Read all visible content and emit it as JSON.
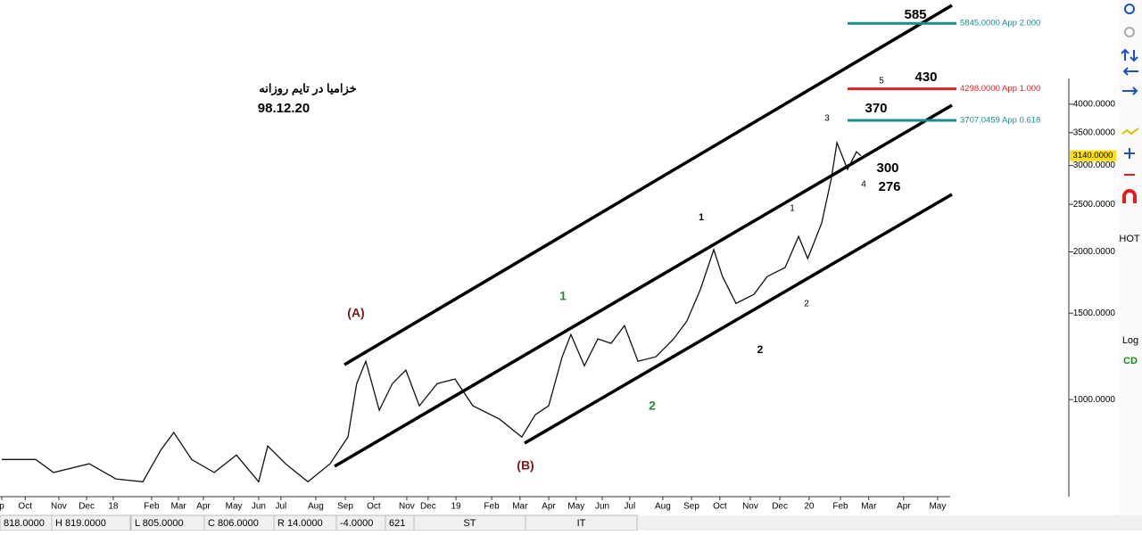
{
  "chart_data": {
    "type": "line",
    "log_scale": true,
    "color": "#111111",
    "x": [
      0,
      1.16,
      1.77,
      2.99,
      3.9,
      4.82,
      5.43,
      5.88,
      6.49,
      7.26,
      8.02,
      8.78,
      9.09,
      9.7,
      10.46,
      11.22,
      11.83,
      12.13,
      12.44,
      12.9,
      13.35,
      13.81,
      14.27,
      14.88,
      15.49,
      16.1,
      17.01,
      17.77,
      18.23,
      18.69,
      19.15,
      19.45,
      19.91,
      20.37,
      20.82,
      21.28,
      21.74,
      22.35,
      22.96,
      23.41,
      23.87,
      24.33,
      24.63,
      25.09,
      25.7,
      26.16,
      26.77,
      27.23,
      27.54,
      28.02,
      28.35,
      28.54,
      28.9,
      29.21,
      29.36
    ],
    "values": [
      755,
      755,
      710,
      740,
      689,
      680,
      788,
      857,
      755,
      710,
      771,
      680,
      804,
      740,
      680,
      740,
      839,
      1078,
      1197,
      951,
      1078,
      1148,
      971,
      1078,
      1101,
      971,
      912,
      839,
      931,
      971,
      1222,
      1357,
      1172,
      1329,
      1302,
      1415,
      1197,
      1222,
      1329,
      1445,
      1674,
      2021,
      1782,
      1571,
      1638,
      1782,
      1859,
      2151,
      1938,
      2290,
      2823,
      3339,
      2947,
      3200,
      3140
    ],
    "xlim": [
      -0.06,
      32.41
    ],
    "ylim": [
      634,
      6523
    ],
    "xticks": [
      {
        "value": 0,
        "label": "p"
      },
      {
        "value": 0.8,
        "label": "Oct"
      },
      {
        "value": 1.95,
        "label": "Nov"
      },
      {
        "value": 2.9,
        "label": "Dec"
      },
      {
        "value": 3.81,
        "label": "18"
      },
      {
        "value": 5.12,
        "label": "Feb"
      },
      {
        "value": 6.04,
        "label": "Mar"
      },
      {
        "value": 6.89,
        "label": "Apr"
      },
      {
        "value": 7.93,
        "label": "May"
      },
      {
        "value": 8.78,
        "label": "Jun"
      },
      {
        "value": 9.54,
        "label": "Jul"
      },
      {
        "value": 10.73,
        "label": "Aug"
      },
      {
        "value": 11.74,
        "label": "Sep"
      },
      {
        "value": 12.71,
        "label": "Oct"
      },
      {
        "value": 13.84,
        "label": "Nov"
      },
      {
        "value": 14.57,
        "label": "Dec"
      },
      {
        "value": 15.52,
        "label": "19"
      },
      {
        "value": 16.74,
        "label": "Feb"
      },
      {
        "value": 17.71,
        "label": "Mar"
      },
      {
        "value": 18.69,
        "label": "Apr"
      },
      {
        "value": 19.63,
        "label": "May"
      },
      {
        "value": 20.52,
        "label": "Jun"
      },
      {
        "value": 21.46,
        "label": "Jul"
      },
      {
        "value": 22.59,
        "label": "Aug"
      },
      {
        "value": 23.57,
        "label": "Sep"
      },
      {
        "value": 24.54,
        "label": "Oct"
      },
      {
        "value": 25.58,
        "label": "Nov"
      },
      {
        "value": 26.59,
        "label": "Dec"
      },
      {
        "value": 27.59,
        "label": "20"
      },
      {
        "value": 28.66,
        "label": "Feb"
      },
      {
        "value": 29.63,
        "label": "Mar"
      },
      {
        "value": 30.82,
        "label": "Apr"
      },
      {
        "value": 31.98,
        "label": "May"
      }
    ],
    "yticks": [
      {
        "value": 1000,
        "label": "1000.0000"
      },
      {
        "value": 1500,
        "label": "1500.0000"
      },
      {
        "value": 2000,
        "label": "2000.0000"
      },
      {
        "value": 2500,
        "label": "2500.0000"
      },
      {
        "value": 3000,
        "label": "3000.0000"
      },
      {
        "value": 3500,
        "label": "3500.0000"
      },
      {
        "value": 4000,
        "label": "4000.0000"
      }
    ],
    "last_price": {
      "value": 3140,
      "label": "3140.0000"
    },
    "levels": [
      {
        "value": 5845,
        "label": "5845.0000 App 2.000",
        "color": "#1a8c8c"
      },
      {
        "value": 4298,
        "label": "4298.0000 App 1.000",
        "color": "#e02020"
      },
      {
        "value": 3707,
        "label": "3707.0459 App 0.618",
        "color": "#1a8c8c"
      }
    ],
    "annotations": [
      "خزامیا در تایم روزانه",
      "98.12.20",
      "585",
      "430",
      "370",
      "300",
      "276",
      "(A)",
      "(B)",
      "1",
      "2",
      "1",
      "1",
      "2",
      "2",
      "3",
      "4",
      "5"
    ]
  },
  "toolbar": {
    "hot": "HOT",
    "log": "Log",
    "cd": "CD"
  },
  "status_bar": [
    "818.0000",
    "H 819.0000",
    "L 805.0000",
    "C 806.0000",
    "R 14.0000",
    "-4.0000",
    "621",
    "ST",
    "IT"
  ]
}
